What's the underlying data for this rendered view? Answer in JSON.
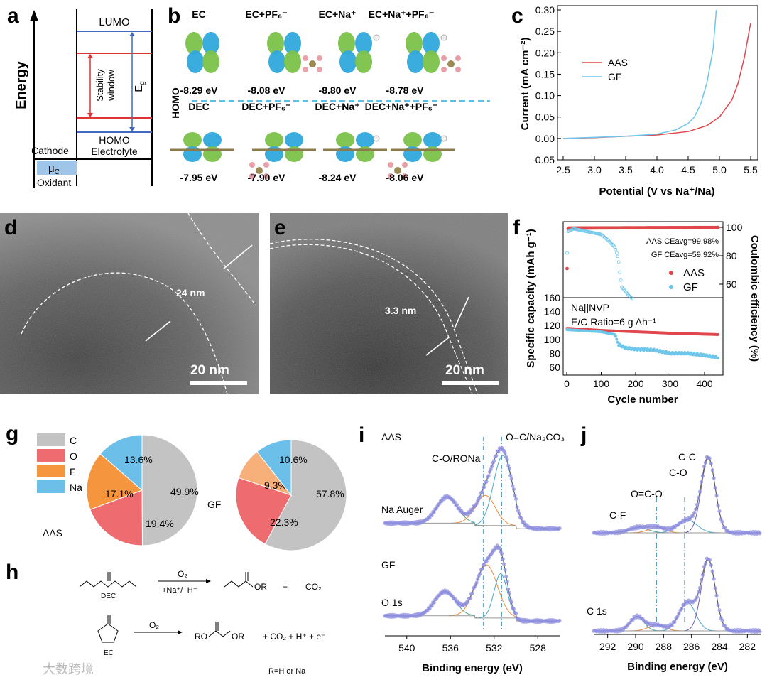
{
  "panel_labels": {
    "a": "a",
    "b": "b",
    "c": "c",
    "d": "d",
    "e": "e",
    "f": "f",
    "g": "g",
    "h": "h",
    "i": "i",
    "j": "j"
  },
  "panel_a": {
    "yaxis": "Energy",
    "lumo": "LUMO",
    "homo": "HOMO",
    "electrolyte": "Electrolyte",
    "stability": "Stability",
    "window": "window",
    "eg": "E",
    "eg_sub": "g",
    "cathode": "Cathode",
    "mu": "μ",
    "mu_sub": "C",
    "oxidant": "Oxidant"
  },
  "panel_b": {
    "side_label": "HOMO",
    "top": [
      {
        "name": "EC",
        "ev": "-8.29 eV"
      },
      {
        "name": "EC+PF₆⁻",
        "ev": "-8.08 eV"
      },
      {
        "name": "EC+Na⁺",
        "ev": "-8.80 eV"
      },
      {
        "name": "EC+Na⁺+PF₆⁻",
        "ev": "-8.78  eV"
      }
    ],
    "bottom": [
      {
        "name": "DEC",
        "ev": "-7.95 eV"
      },
      {
        "name": "DEC+PF₆⁻",
        "ev": "-7.90 eV"
      },
      {
        "name": "DEC+Na⁺",
        "ev": "-8.24 eV"
      },
      {
        "name": "DEC+Na⁺+PF₆⁻",
        "ev": "-8.06 eV"
      }
    ],
    "colors": {
      "lobe_a": "#2fa8dc",
      "lobe_b": "#7cc24a",
      "dash": "#5bbfe8"
    }
  },
  "panel_d": {
    "thickness": "24 nm",
    "scale": "20 nm"
  },
  "panel_e": {
    "thickness": "3.3 nm",
    "scale": "20 nm"
  },
  "panel_h": {
    "dec": "DEC",
    "ec": "EC",
    "o2a": "O₂",
    "cond": "+Na⁺/−H⁺",
    "prod1": "OR",
    "plus1": "+",
    "co2": "CO₂",
    "o2b": "O₂",
    "prod2_l": "RO",
    "prod2_r": "OR",
    "byprod": "+ CO₂ + H⁺ + e⁻",
    "r_note": "R=H or Na"
  },
  "watermark": "大数跨境",
  "chart_data": [
    {
      "id": "c",
      "type": "line",
      "title": "",
      "xlabel": "Potential (V vs Na⁺/Na)",
      "ylabel": "Current (mA cm⁻²)",
      "xlim": [
        2.5,
        5.5
      ],
      "ylim": [
        -0.05,
        0.3
      ],
      "xticks": [
        "2.5",
        "3.0",
        "3.5",
        "4.0",
        "4.5",
        "5.0",
        "5.5"
      ],
      "yticks": [
        "-0.05",
        "0.00",
        "0.05",
        "0.10",
        "0.15",
        "0.20",
        "0.25",
        "0.30"
      ],
      "legend_position": "center-left",
      "series": [
        {
          "name": "AAS",
          "color": "#e0474c",
          "points": [
            [
              2.5,
              0
            ],
            [
              3.0,
              0.002
            ],
            [
              3.5,
              0.005
            ],
            [
              4.0,
              0.008
            ],
            [
              4.5,
              0.016
            ],
            [
              4.8,
              0.03
            ],
            [
              5.0,
              0.05
            ],
            [
              5.2,
              0.09
            ],
            [
              5.3,
              0.13
            ],
            [
              5.4,
              0.19
            ],
            [
              5.5,
              0.27
            ]
          ]
        },
        {
          "name": "GF",
          "color": "#6ec6ea",
          "points": [
            [
              2.5,
              0
            ],
            [
              3.5,
              0.005
            ],
            [
              4.0,
              0.01
            ],
            [
              4.3,
              0.02
            ],
            [
              4.5,
              0.035
            ],
            [
              4.6,
              0.05
            ],
            [
              4.7,
              0.08
            ],
            [
              4.8,
              0.13
            ],
            [
              4.9,
              0.21
            ],
            [
              4.95,
              0.3
            ]
          ]
        }
      ]
    },
    {
      "id": "f",
      "type": "scatter",
      "xlabel": "Cycle number",
      "ylabel_left": "Specific capacity (mAh g⁻¹)",
      "ylabel_right": "Coulombic efficiency (%)",
      "xlim": [
        0,
        440
      ],
      "xticks": [
        "0",
        "100",
        "200",
        "300",
        "400"
      ],
      "ce_ylim": [
        50,
        102
      ],
      "ce_ticks": [
        "60",
        "80",
        "100"
      ],
      "cap_ylim": [
        50,
        160
      ],
      "cap_ticks": [
        "60",
        "80",
        "100",
        "120",
        "140",
        "160"
      ],
      "annotations": {
        "aas_ce": "AAS CEavg=99.98%",
        "gf_ce": "GF   CEavg=59.92%",
        "cell": "Na||NVP",
        "ratio": "E/C Ratio=6 g Ah⁻¹"
      },
      "legend_position": "right",
      "series": [
        {
          "name": "AAS",
          "color": "#e0474c",
          "ce": [
            [
              1,
              71
            ],
            [
              2,
              98
            ],
            [
              5,
              99.5
            ],
            [
              440,
              99.9
            ]
          ],
          "capacity": [
            [
              1,
              116
            ],
            [
              100,
              113
            ],
            [
              200,
              111
            ],
            [
              300,
              109
            ],
            [
              440,
              107
            ]
          ]
        },
        {
          "name": "GF",
          "color": "#6ec6ea",
          "ce": [
            [
              1,
              82
            ],
            [
              3,
              97
            ],
            [
              20,
              99
            ],
            [
              60,
              97
            ],
            [
              100,
              95
            ],
            [
              120,
              91
            ],
            [
              140,
              86
            ],
            [
              150,
              78
            ],
            [
              155,
              66
            ],
            [
              160,
              58
            ],
            [
              170,
              55
            ],
            [
              180,
              52
            ],
            [
              190,
              50
            ]
          ],
          "capacity": [
            [
              1,
              114
            ],
            [
              100,
              111
            ],
            [
              140,
              107
            ],
            [
              150,
              93
            ],
            [
              170,
              88
            ],
            [
              200,
              86
            ],
            [
              250,
              85
            ],
            [
              300,
              80
            ],
            [
              350,
              80
            ],
            [
              400,
              77
            ],
            [
              440,
              74
            ]
          ]
        }
      ]
    },
    {
      "id": "g",
      "type": "pie",
      "legend": [
        "C",
        "O",
        "F",
        "Na"
      ],
      "colors": [
        "#c3c3c3",
        "#ee6b6f",
        "#f5963f",
        "#6cbfe9"
      ],
      "pies": [
        {
          "name": "AAS",
          "values": [
            49.9,
            19.4,
            17.1,
            13.6
          ],
          "labels": [
            "49.9%",
            "19.4%",
            "17.1%",
            "13.6%"
          ]
        },
        {
          "name": "GF",
          "values": [
            57.8,
            22.3,
            9.3,
            10.6
          ],
          "labels": [
            "57.8%",
            "22.3%",
            "9.3%",
            "10.6%"
          ]
        }
      ]
    },
    {
      "id": "i",
      "type": "line",
      "xlabel": "Binding energy (eV)",
      "xlim": [
        542,
        526
      ],
      "xticks": [
        "540",
        "536",
        "532",
        "528"
      ],
      "labels": {
        "aas": "AAS",
        "gf": "GF",
        "auger": "Na Auger",
        "core": "O 1s",
        "p1": "C-O/RONa",
        "p2": "O=C/Na₂CO₃"
      },
      "ref_lines": [
        533.0,
        531.3
      ],
      "spectra": [
        {
          "name": "AAS",
          "peaks": [
            {
              "center": 536.3,
              "height": 0.33,
              "width": 0.95,
              "color": "#4aa08a"
            },
            {
              "center": 532.8,
              "height": 0.38,
              "width": 0.9,
              "color": "#f08a3c"
            },
            {
              "center": 531.2,
              "height": 0.88,
              "width": 0.85,
              "color": "#4ba6c8"
            }
          ]
        },
        {
          "name": "GF",
          "peaks": [
            {
              "center": 536.5,
              "height": 0.33,
              "width": 0.95,
              "color": "#4aa08a"
            },
            {
              "center": 532.7,
              "height": 0.72,
              "width": 1.0,
              "color": "#f08a3c"
            },
            {
              "center": 531.4,
              "height": 0.6,
              "width": 0.6,
              "color": "#4ba6c8"
            }
          ]
        }
      ]
    },
    {
      "id": "j",
      "type": "line",
      "xlabel": "Binding energy (eV)",
      "xlim": [
        293,
        281
      ],
      "xticks": [
        "292",
        "290",
        "288",
        "286",
        "284",
        "282"
      ],
      "labels": {
        "cf": "C-F",
        "oco": "O=C-O",
        "co": "C-O",
        "cc": "C-C",
        "core": "C 1s"
      },
      "ref_lines": [
        288.5,
        286.5
      ],
      "spectra": [
        {
          "name": "AAS",
          "peaks": [
            {
              "center": 289.8,
              "height": 0.07,
              "width": 0.7,
              "color": "#4aa08a"
            },
            {
              "center": 288.5,
              "height": 0.07,
              "width": 0.6,
              "color": "#f08a3c"
            },
            {
              "center": 286.3,
              "height": 0.17,
              "width": 0.7,
              "color": "#4ba6c8"
            },
            {
              "center": 284.8,
              "height": 1.0,
              "width": 0.5,
              "color": "#6a5fb0"
            }
          ]
        },
        {
          "name": "GF",
          "peaks": [
            {
              "center": 289.9,
              "height": 0.2,
              "width": 0.5,
              "color": "#4aa08a"
            },
            {
              "center": 288.5,
              "height": 0.08,
              "width": 0.6,
              "color": "#f08a3c"
            },
            {
              "center": 286.3,
              "height": 0.4,
              "width": 0.6,
              "color": "#4ba6c8"
            },
            {
              "center": 284.8,
              "height": 1.0,
              "width": 0.5,
              "color": "#6a5fb0"
            }
          ]
        }
      ]
    }
  ]
}
